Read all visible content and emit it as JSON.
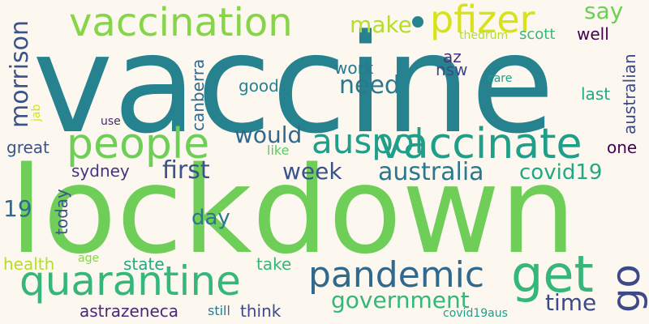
{
  "background": "#fcf8ef",
  "words": [
    {
      "id": "vaccine",
      "text": "vaccine",
      "color": "#26828e"
    },
    {
      "id": "lockdown",
      "text": "lockdown",
      "color": "#6ece58"
    },
    {
      "id": "vaccination",
      "text": "vaccination",
      "color": "#86d549"
    },
    {
      "id": "pfizer",
      "text": "pfizer",
      "color": "#d8e219"
    },
    {
      "id": "people",
      "text": "people",
      "color": "#6ece58"
    },
    {
      "id": "vaccinate",
      "text": "vaccinate",
      "color": "#1f9e89"
    },
    {
      "id": "quarantine",
      "text": "quarantine",
      "color": "#35b779"
    },
    {
      "id": "get",
      "text": "get",
      "color": "#35b779"
    },
    {
      "id": "pandemic",
      "text": "pandemic",
      "color": "#31688e"
    },
    {
      "id": "auspol",
      "text": "auspol",
      "color": "#3e4989"
    },
    {
      "id": "go",
      "text": "go",
      "color": "#1f9e89"
    },
    {
      "id": "australia",
      "text": "australia",
      "color": "#2a788e"
    },
    {
      "id": "covid19",
      "text": "covid19",
      "color": "#22a884"
    },
    {
      "id": "government",
      "text": "government",
      "color": "#35b779"
    },
    {
      "id": "morrison",
      "text": "morrison",
      "color": "#3b528b"
    },
    {
      "id": "make",
      "text": "make",
      "color": "#b5de2b"
    },
    {
      "id": "say",
      "text": "say",
      "color": "#6ece58"
    },
    {
      "id": "need",
      "text": "need",
      "color": "#2a788e"
    },
    {
      "id": "would",
      "text": "would",
      "color": "#31688e"
    },
    {
      "id": "first",
      "text": "first",
      "color": "#3b528b"
    },
    {
      "id": "week",
      "text": "week",
      "color": "#3b528b"
    },
    {
      "id": "time",
      "text": "time",
      "color": "#3e4989"
    },
    {
      "id": "day",
      "text": "day",
      "color": "#2a788e"
    },
    {
      "id": "scott",
      "text": "scott",
      "color": "#35b779"
    },
    {
      "id": "well",
      "text": "well",
      "color": "#440154"
    },
    {
      "id": "thedrum",
      "text": "thedrum",
      "color": "#b5de2b"
    },
    {
      "id": "canberra",
      "text": "canberra",
      "color": "#31688e"
    },
    {
      "id": "jab",
      "text": "jab",
      "color": "#d8e219"
    },
    {
      "id": "australian",
      "text": "australian",
      "color": "#3e4989"
    },
    {
      "id": "work",
      "text": "work",
      "color": "#2a788e"
    },
    {
      "id": "az",
      "text": "az",
      "color": "#46337e"
    },
    {
      "id": "nsw",
      "text": "nsw",
      "color": "#3e4989"
    },
    {
      "id": "care",
      "text": "care",
      "color": "#1f9e89"
    },
    {
      "id": "good",
      "text": "good",
      "color": "#26828e"
    },
    {
      "id": "last",
      "text": "last",
      "color": "#22a884"
    },
    {
      "id": "one",
      "text": "one",
      "color": "#440154"
    },
    {
      "id": "use",
      "text": "use",
      "color": "#482878"
    },
    {
      "id": "great",
      "text": "great",
      "color": "#3b528b"
    },
    {
      "id": "like",
      "text": "like",
      "color": "#5ec962"
    },
    {
      "id": "sydney",
      "text": "sydney",
      "color": "#46337e"
    },
    {
      "id": "19",
      "text": "19",
      "color": "#31688e"
    },
    {
      "id": "today",
      "text": "today",
      "color": "#3b528b"
    },
    {
      "id": "health",
      "text": "health",
      "color": "#b5de2b"
    },
    {
      "id": "age",
      "text": "age",
      "color": "#86d549"
    },
    {
      "id": "state",
      "text": "state",
      "color": "#22a884"
    },
    {
      "id": "take",
      "text": "take",
      "color": "#35b779"
    },
    {
      "id": "astrazeneca",
      "text": "astrazeneca",
      "color": "#482878"
    },
    {
      "id": "still",
      "text": "still",
      "color": "#2a788e"
    },
    {
      "id": "think",
      "text": "think",
      "color": "#3e4989"
    },
    {
      "id": "covid19aus",
      "text": "covid19aus",
      "color": "#1f9e89"
    }
  ],
  "dot_color": "#26828e"
}
